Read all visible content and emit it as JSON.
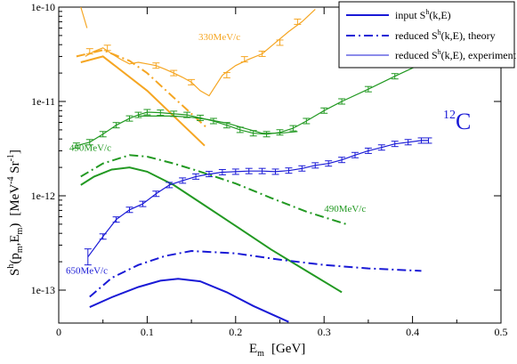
{
  "chart_data": {
    "type": "line",
    "xlabel": "E",
    "xlabel_sub": "m",
    "xlabel_unit": "[GeV]",
    "ylabel_text": "S",
    "ylabel_sup": "h",
    "ylabel_args": "(p",
    "ylabel_sub1": "m",
    "ylabel_mid": ",E",
    "ylabel_sub2": "m",
    "ylabel_close": ")",
    "ylabel_unit_pre": "[MeV",
    "ylabel_unit_sup": "-4",
    "ylabel_unit_post": " Sr",
    "ylabel_unit_sup2": "-1",
    "ylabel_unit_end": "]",
    "xlim": [
      0,
      0.5
    ],
    "ylim": [
      5e-14,
      1e-10
    ],
    "yscale": "log",
    "x_ticks": [
      0,
      0.1,
      0.2,
      0.3,
      0.4,
      0.5
    ],
    "x_tick_labels": [
      "0",
      "0.1",
      "0.2",
      "0.3",
      "0.4",
      "0.5"
    ],
    "y_ticks": [
      1e-13,
      1e-12,
      1e-11,
      1e-10
    ],
    "y_tick_labels": [
      "1e-13",
      "1e-12",
      "1e-11",
      "1e-10"
    ],
    "nucleus_mass": "12",
    "nucleus_symbol": "C",
    "legend": {
      "placement": "top-right",
      "entries": [
        {
          "text": "input S",
          "sup": "h",
          "rest": "(k,E)",
          "style": "solid"
        },
        {
          "text": "reduced S",
          "sup": "h",
          "rest": "(k,E), theory",
          "style": "dashdot"
        },
        {
          "text": "reduced S",
          "sup": "h",
          "rest": "(k,E), experiment",
          "style": "thin"
        }
      ]
    },
    "colors": {
      "330": "#f5a623",
      "490": "#229922",
      "650": "#1a1ad6"
    },
    "annotations": [
      {
        "text": "330MeV/c",
        "x": 0.158,
        "y": 4.5e-11,
        "color": "#f5a623"
      },
      {
        "text": "490MeV/c",
        "x": 0.012,
        "y": 3e-12,
        "color": "#229922"
      },
      {
        "text": "490MeV/c",
        "x": 0.3,
        "y": 6.8e-13,
        "color": "#229922"
      },
      {
        "text": "650MeV/c",
        "x": 0.008,
        "y": 1.5e-13,
        "color": "#1a1ad6"
      }
    ],
    "series": [
      {
        "momentum": "330",
        "kind": "input",
        "x": [
          0.025,
          0.05,
          0.1,
          0.165
        ],
        "y": [
          2.6e-11,
          3e-11,
          1.3e-11,
          3.4e-12
        ]
      },
      {
        "momentum": "330",
        "kind": "theory",
        "x": [
          0.02,
          0.05,
          0.08,
          0.1,
          0.13,
          0.168
        ],
        "y": [
          3e-11,
          3.5e-11,
          2.7e-11,
          2e-11,
          1.1e-11,
          5.2e-12
        ]
      },
      {
        "momentum": "330",
        "kind": "experiment",
        "x": [
          0.03,
          0.04,
          0.05,
          0.06,
          0.07,
          0.08,
          0.09,
          0.1,
          0.11,
          0.12,
          0.13,
          0.14,
          0.15,
          0.16,
          0.17,
          0.185,
          0.2,
          0.215,
          0.23,
          0.245,
          0.26,
          0.275,
          0.29
        ],
        "y": [
          3e-11,
          3.4e-11,
          3.7e-11,
          3.2e-11,
          2.8e-11,
          2.5e-11,
          2.6e-11,
          2.5e-11,
          2.4e-11,
          2.2e-11,
          2e-11,
          1.8e-11,
          1.6e-11,
          1.3e-11,
          1.15e-11,
          1.9e-11,
          2.4e-11,
          2.8e-11,
          3.2e-11,
          4.2e-11,
          5.5e-11,
          7e-11,
          9.5e-11
        ],
        "err_x": [
          0.035,
          0.055,
          0.11,
          0.13,
          0.15,
          0.19,
          0.21,
          0.23,
          0.25,
          0.27
        ]
      },
      {
        "momentum": "330",
        "kind": "experiment-upper",
        "x": [
          0.025,
          0.032
        ],
        "y": [
          1e-10,
          6e-11
        ]
      },
      {
        "momentum": "490",
        "kind": "input",
        "x": [
          0.025,
          0.04,
          0.06,
          0.08,
          0.1,
          0.13,
          0.16,
          0.2,
          0.24,
          0.28,
          0.32
        ],
        "y": [
          1.3e-12,
          1.6e-12,
          1.9e-12,
          2e-12,
          1.8e-12,
          1.3e-12,
          8.5e-13,
          4.8e-13,
          2.7e-13,
          1.6e-13,
          9.5e-14
        ]
      },
      {
        "momentum": "490",
        "kind": "theory",
        "x": [
          0.025,
          0.05,
          0.08,
          0.1,
          0.13,
          0.16,
          0.2,
          0.24,
          0.28,
          0.325
        ],
        "y": [
          1.6e-12,
          2.2e-12,
          2.7e-12,
          2.6e-12,
          2.2e-12,
          1.8e-12,
          1.35e-12,
          9.5e-13,
          6.8e-13,
          5e-13
        ]
      },
      {
        "momentum": "490",
        "kind": "experiment",
        "x": [
          0.02,
          0.035,
          0.05,
          0.065,
          0.08,
          0.09,
          0.1,
          0.115,
          0.13,
          0.145,
          0.16,
          0.175,
          0.19,
          0.205,
          0.22,
          0.235,
          0.25,
          0.265,
          0.28,
          0.3,
          0.32,
          0.35,
          0.38,
          0.41,
          0.44,
          0.47
        ],
        "y": [
          3.4e-12,
          3.7e-12,
          4.5e-12,
          5.6e-12,
          6.6e-12,
          7.2e-12,
          7.7e-12,
          7.6e-12,
          7.4e-12,
          7.2e-12,
          6.7e-12,
          6.2e-12,
          5.6e-12,
          5e-12,
          4.6e-12,
          4.5e-12,
          4.7e-12,
          5.2e-12,
          6.2e-12,
          8e-12,
          1e-11,
          1.35e-11,
          1.85e-11,
          2.5e-11,
          3.4e-11,
          4.6e-11
        ],
        "err_x": [
          0.02,
          0.035,
          0.05,
          0.065,
          0.08,
          0.09,
          0.1,
          0.115,
          0.13,
          0.145,
          0.16,
          0.175,
          0.19,
          0.205,
          0.22,
          0.235,
          0.25,
          0.265,
          0.28,
          0.3,
          0.32,
          0.35,
          0.38
        ]
      },
      {
        "momentum": "490",
        "kind": "experiment-b",
        "x": [
          0.09,
          0.11,
          0.13,
          0.15,
          0.17,
          0.19,
          0.21,
          0.23,
          0.25,
          0.27
        ],
        "y": [
          7e-12,
          7e-12,
          7e-12,
          6.8e-12,
          6.4e-12,
          5.9e-12,
          5.2e-12,
          4.6e-12,
          4.6e-12,
          4.8e-12
        ]
      },
      {
        "momentum": "650",
        "kind": "input",
        "x": [
          0.035,
          0.06,
          0.09,
          0.115,
          0.135,
          0.16,
          0.19,
          0.22,
          0.26
        ],
        "y": [
          6.6e-14,
          8.4e-14,
          1.08e-13,
          1.26e-13,
          1.32e-13,
          1.24e-13,
          9.5e-14,
          6.8e-14,
          4.6e-14
        ]
      },
      {
        "momentum": "650",
        "kind": "theory",
        "x": [
          0.035,
          0.06,
          0.09,
          0.12,
          0.15,
          0.2,
          0.25,
          0.3,
          0.35,
          0.41
        ],
        "y": [
          8.5e-14,
          1.35e-13,
          1.85e-13,
          2.3e-13,
          2.6e-13,
          2.45e-13,
          2.1e-13,
          1.85e-13,
          1.7e-13,
          1.6e-13
        ]
      },
      {
        "momentum": "650",
        "kind": "experiment",
        "x": [
          0.033,
          0.05,
          0.065,
          0.08,
          0.095,
          0.11,
          0.125,
          0.14,
          0.155,
          0.17,
          0.185,
          0.2,
          0.215,
          0.23,
          0.245,
          0.26,
          0.275,
          0.29,
          0.305,
          0.32,
          0.335,
          0.35,
          0.365,
          0.38,
          0.395,
          0.41,
          0.418
        ],
        "y": [
          2.25e-13,
          3.7e-13,
          5.6e-13,
          7.1e-13,
          8.2e-13,
          1.05e-12,
          1.3e-12,
          1.45e-12,
          1.6e-12,
          1.7e-12,
          1.78e-12,
          1.8e-12,
          1.83e-12,
          1.83e-12,
          1.8e-12,
          1.85e-12,
          1.95e-12,
          2.1e-12,
          2.2e-12,
          2.4e-12,
          2.7e-12,
          3e-12,
          3.25e-12,
          3.55e-12,
          3.7e-12,
          3.85e-12,
          3.85e-12
        ],
        "err_x": [
          0.033,
          0.05,
          0.065,
          0.08,
          0.095,
          0.11,
          0.125,
          0.14,
          0.155,
          0.17,
          0.185,
          0.2,
          0.215,
          0.23,
          0.245,
          0.26,
          0.275,
          0.29,
          0.305,
          0.32,
          0.335,
          0.35,
          0.365,
          0.38,
          0.395,
          0.41,
          0.418
        ]
      }
    ]
  }
}
